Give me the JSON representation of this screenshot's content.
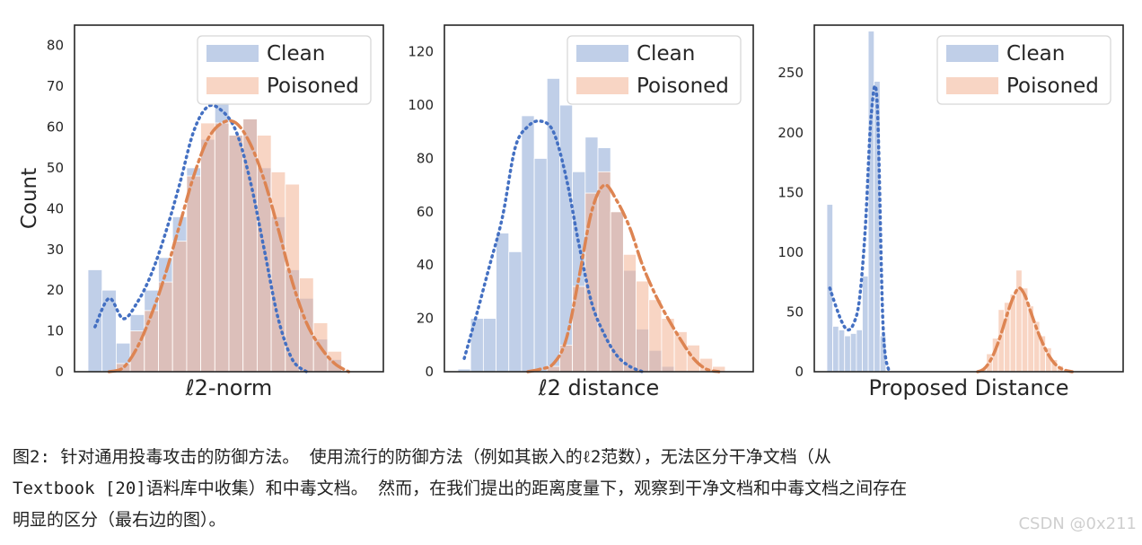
{
  "chart_data": [
    {
      "type": "histogram",
      "xlabel": "ℓ2-norm",
      "ylabel": "Count",
      "ylim": [
        0,
        85
      ],
      "yticks": [
        0,
        10,
        20,
        30,
        40,
        50,
        60,
        70,
        80
      ],
      "legend": "top-right",
      "series": [
        {
          "name": "Clean",
          "color": "#8da7d5",
          "line_color": "#4470c2",
          "line_style": "dotted",
          "values": [
            25,
            20,
            7,
            14,
            20,
            28,
            38,
            50,
            57,
            66,
            58,
            62,
            50,
            38,
            25,
            18,
            8,
            3,
            0,
            0
          ],
          "curve": [
            11,
            18,
            13,
            17,
            24,
            34,
            46,
            59,
            65,
            64,
            59,
            47,
            30,
            13,
            3,
            0,
            0,
            0,
            0,
            0
          ]
        },
        {
          "name": "Poisoned",
          "color": "#f3b394",
          "line_color": "#dd8452",
          "line_style": "dashdot",
          "values": [
            0,
            0,
            2,
            10,
            15,
            22,
            32,
            48,
            61,
            61,
            58,
            62,
            58,
            49,
            46,
            23,
            12,
            5,
            0,
            0
          ],
          "curve": [
            0,
            0,
            1,
            6,
            14,
            24,
            36,
            48,
            57,
            61,
            61,
            56,
            47,
            35,
            22,
            12,
            6,
            2,
            0,
            0
          ]
        }
      ]
    },
    {
      "type": "histogram",
      "xlabel": "ℓ2 distance",
      "ylabel": "",
      "ylim": [
        0,
        130
      ],
      "yticks": [
        0,
        20,
        40,
        60,
        80,
        100,
        120
      ],
      "legend": "top-right",
      "series": [
        {
          "name": "Clean",
          "color": "#8da7d5",
          "line_color": "#4470c2",
          "line_style": "dotted",
          "values": [
            1,
            20,
            20,
            52,
            45,
            96,
            80,
            110,
            100,
            75,
            88,
            84,
            60,
            38,
            16,
            8,
            2,
            0,
            0,
            0,
            0,
            0
          ],
          "curve": [
            5,
            22,
            40,
            58,
            84,
            92,
            94,
            90,
            73,
            48,
            26,
            14,
            6,
            2,
            0,
            0,
            0,
            0,
            0,
            0,
            0,
            0
          ]
        },
        {
          "name": "Poisoned",
          "color": "#f3b394",
          "line_color": "#dd8452",
          "line_style": "dashdot",
          "values": [
            0,
            0,
            0,
            0,
            0,
            0,
            0,
            2,
            10,
            32,
            67,
            75,
            60,
            44,
            34,
            27,
            20,
            15,
            10,
            5,
            2,
            0
          ],
          "curve": [
            0,
            0,
            0,
            0,
            0,
            0,
            1,
            3,
            12,
            35,
            60,
            70,
            64,
            54,
            40,
            29,
            20,
            12,
            5,
            1,
            0,
            0
          ]
        }
      ]
    },
    {
      "type": "histogram",
      "xlabel": "Proposed Distance",
      "ylabel": "",
      "ylim": [
        0,
        290
      ],
      "yticks": [
        0,
        50,
        100,
        150,
        200,
        250
      ],
      "legend": "top-right",
      "series": [
        {
          "name": "Clean",
          "color": "#8da7d5",
          "line_color": "#4470c2",
          "line_style": "dotted",
          "values": [
            140,
            38,
            35,
            30,
            32,
            35,
            80,
            285,
            243,
            30,
            0,
            0,
            0,
            0,
            0,
            0,
            0,
            0,
            0,
            0,
            0,
            0,
            0,
            0,
            0,
            0,
            0,
            0,
            0,
            0,
            0,
            0,
            0,
            0,
            0,
            0,
            0,
            0,
            0,
            0,
            0,
            0,
            0,
            0,
            0,
            0,
            0,
            0
          ],
          "curve": [
            70,
            55,
            42,
            35,
            40,
            60,
            120,
            215,
            225,
            40,
            0,
            0,
            0,
            0,
            0,
            0,
            0,
            0,
            0,
            0,
            0,
            0,
            0,
            0,
            0,
            0,
            0,
            0,
            0,
            0,
            0,
            0,
            0,
            0,
            0,
            0,
            0,
            0,
            0,
            0,
            0,
            0,
            0,
            0,
            0,
            0,
            0,
            0
          ]
        },
        {
          "name": "Poisoned",
          "color": "#f3b394",
          "line_color": "#dd8452",
          "line_style": "dashdot",
          "values": [
            0,
            0,
            0,
            0,
            0,
            0,
            0,
            0,
            0,
            0,
            0,
            0,
            0,
            0,
            0,
            0,
            0,
            0,
            0,
            0,
            0,
            0,
            0,
            0,
            0,
            0,
            3,
            15,
            28,
            52,
            58,
            65,
            85,
            70,
            55,
            42,
            30,
            20,
            10,
            5,
            2,
            0,
            0,
            0,
            0,
            0,
            0,
            0
          ],
          "curve": [
            0,
            0,
            0,
            0,
            0,
            0,
            0,
            0,
            0,
            0,
            0,
            0,
            0,
            0,
            0,
            0,
            0,
            0,
            0,
            0,
            0,
            0,
            0,
            0,
            0,
            0,
            2,
            8,
            18,
            32,
            48,
            62,
            70,
            64,
            50,
            36,
            24,
            14,
            7,
            3,
            1,
            0,
            0,
            0,
            0,
            0,
            0,
            0
          ]
        }
      ]
    }
  ],
  "caption": {
    "line1": "图2: 针对通用投毒攻击的防御方法。 使用流行的防御方法（例如其嵌入的ℓ2范数），无法区分干净文档（从",
    "line2": "Textbook  [20]语料库中收集）和中毒文档。 然而，在我们提出的距离度量下，观察到干净文档和中毒文档之间存在",
    "line3": "明显的区分（最右边的图）。"
  },
  "watermark": "CSDN @0x211"
}
